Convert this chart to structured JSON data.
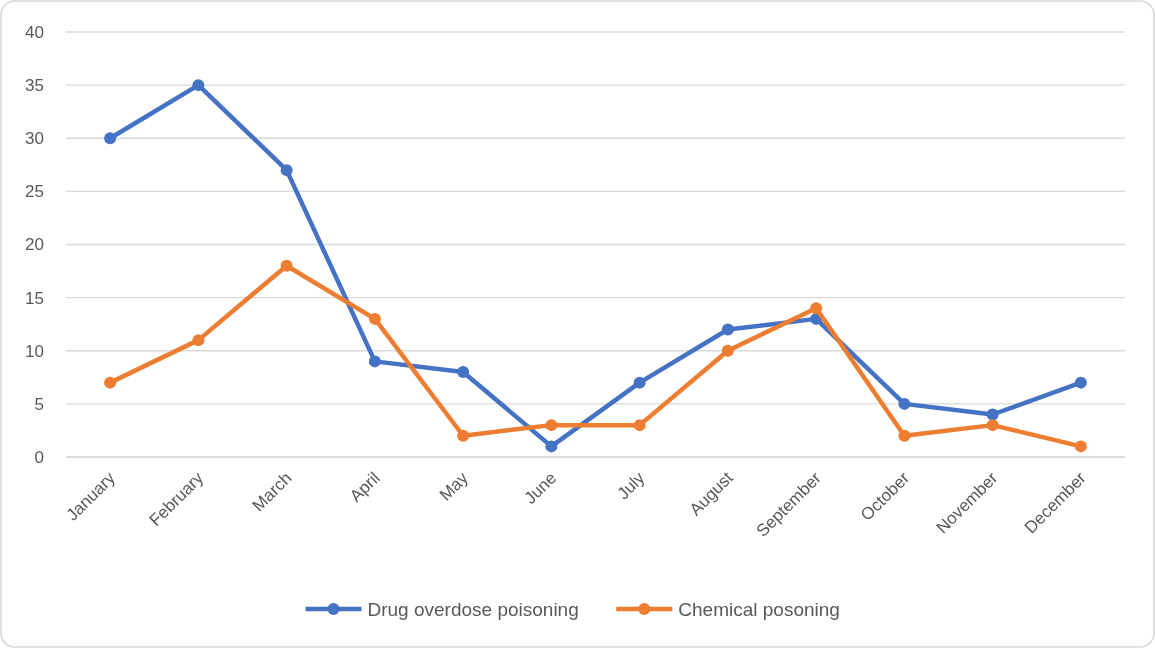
{
  "chart_data": {
    "type": "line",
    "categories": [
      "January",
      "February",
      "March",
      "April",
      "May",
      "June",
      "July",
      "August",
      "September",
      "October",
      "November",
      "December"
    ],
    "series": [
      {
        "name": "Drug overdose poisoning",
        "color": "#4472c4",
        "values": [
          30,
          35,
          27,
          9,
          8,
          1,
          7,
          12,
          13,
          5,
          4,
          7
        ]
      },
      {
        "name": "Chemical posoning",
        "color": "#ed7d31",
        "values": [
          7,
          11,
          18,
          13,
          2,
          3,
          3,
          10,
          14,
          2,
          3,
          1
        ]
      }
    ],
    "ylim": [
      0,
      40
    ],
    "yticks": [
      0,
      5,
      10,
      15,
      20,
      25,
      30,
      35,
      40
    ],
    "grid": "y",
    "legend": "bottom",
    "marker": "circle",
    "line_style": "solid"
  }
}
